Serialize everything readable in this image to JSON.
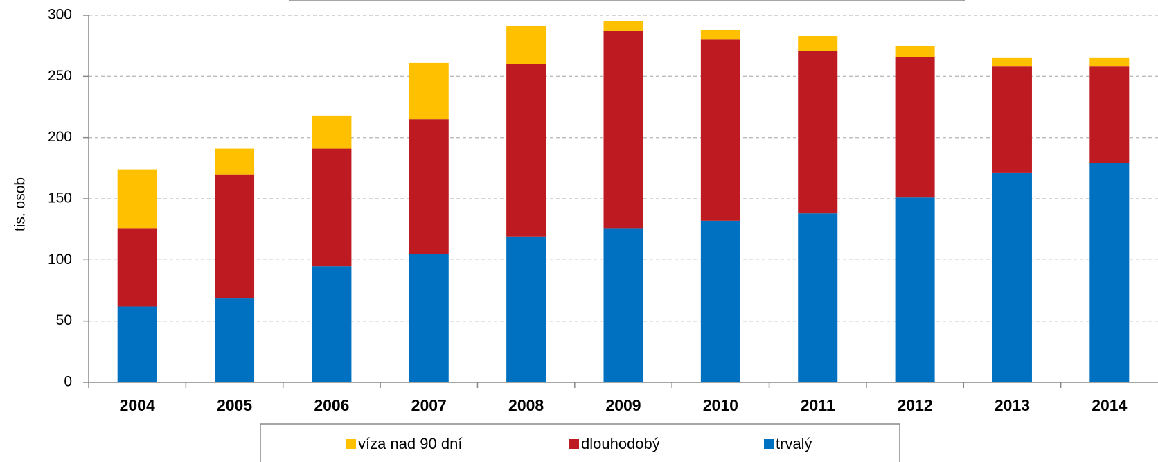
{
  "chart_data": {
    "type": "stacked-bar",
    "y_label": "tis. osob",
    "categories": [
      "2004",
      "2005",
      "2006",
      "2007",
      "2008",
      "2009",
      "2010",
      "2011",
      "2012",
      "2013",
      "2014"
    ],
    "series": [
      {
        "name": "víza nad 90 dní",
        "color": "#ffc000",
        "values": [
          48,
          21,
          27,
          46,
          31,
          8,
          8,
          12,
          9,
          7,
          7
        ]
      },
      {
        "name": "dlouhodobý",
        "color": "#be1a21",
        "values": [
          64,
          101,
          96,
          110,
          141,
          161,
          148,
          133,
          115,
          87,
          79
        ]
      },
      {
        "name": "trvalý",
        "color": "#0070c0",
        "values": [
          62,
          69,
          95,
          105,
          119,
          126,
          132,
          138,
          151,
          171,
          179
        ]
      }
    ],
    "ylim": [
      0,
      300
    ],
    "yticks": [
      0,
      50,
      100,
      150,
      200,
      250,
      300
    ],
    "grid": true,
    "legend": "bottom"
  }
}
